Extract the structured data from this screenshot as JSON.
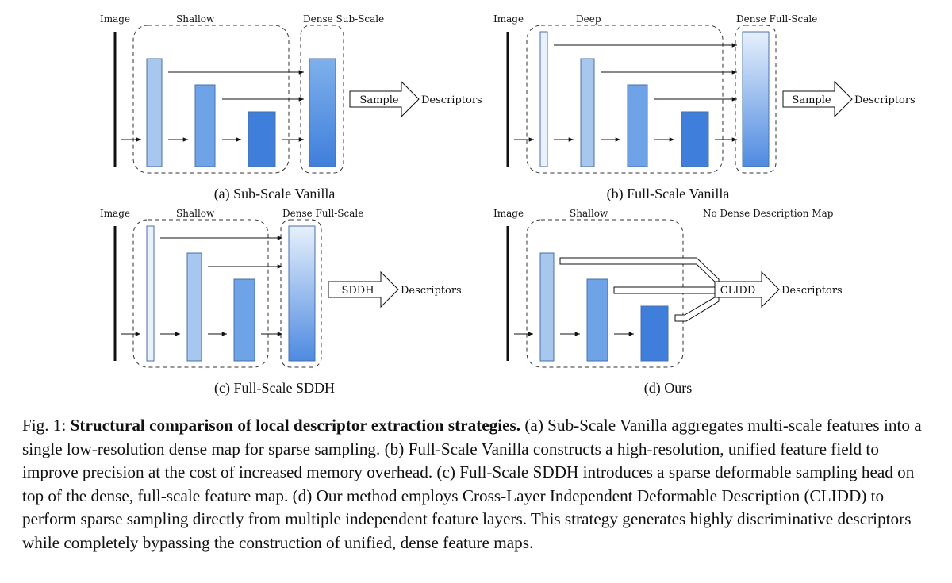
{
  "figure": {
    "panels": [
      {
        "id": "a",
        "image_label": "Image",
        "region_label": "Shallow",
        "dense_label": "Dense Sub-Scale",
        "head_label": "Sample",
        "output_label": "Descriptors",
        "caption": "(a) Sub-Scale Vanilla"
      },
      {
        "id": "b",
        "image_label": "Image",
        "region_label": "Deep",
        "dense_label": "Dense Full-Scale",
        "head_label": "Sample",
        "output_label": "Descriptors",
        "caption": "(b) Full-Scale Vanilla"
      },
      {
        "id": "c",
        "image_label": "Image",
        "region_label": "Shallow",
        "dense_label": "Dense Full-Scale",
        "head_label": "SDDH",
        "output_label": "Descriptors",
        "caption": "(c) Full-Scale SDDH"
      },
      {
        "id": "d",
        "image_label": "Image",
        "region_label": "Shallow",
        "dense_label": "No Dense Description Map",
        "head_label": "CLIDD",
        "output_label": "Descriptors",
        "caption": "(d) Ours"
      }
    ],
    "caption": {
      "prefix": "Fig. 1: ",
      "title": "Structural comparison of local descriptor extraction strategies.",
      "body": " (a) Sub-Scale Vanilla aggregates multi-scale features into a single low-resolution dense map for sparse sampling. (b) Full-Scale Vanilla constructs a high-resolution, unified feature field to improve precision at the cost of increased memory overhead. (c) Full-Scale SDDH introduces a sparse deformable sampling head on top of the dense, full-scale feature map. (d) Our method employs Cross-Layer Independent Deformable Description (CLIDD) to perform sparse sampling directly from multiple independent feature layers. This strategy generates highly discriminative descriptors while completely bypassing the construction of unified, dense feature maps."
    }
  },
  "colors": {
    "layer_1": "#a7c7ee",
    "layer_2": "#6fa3e7",
    "layer_3": "#3f7fdb",
    "layer_full": "#e8f1fc"
  }
}
